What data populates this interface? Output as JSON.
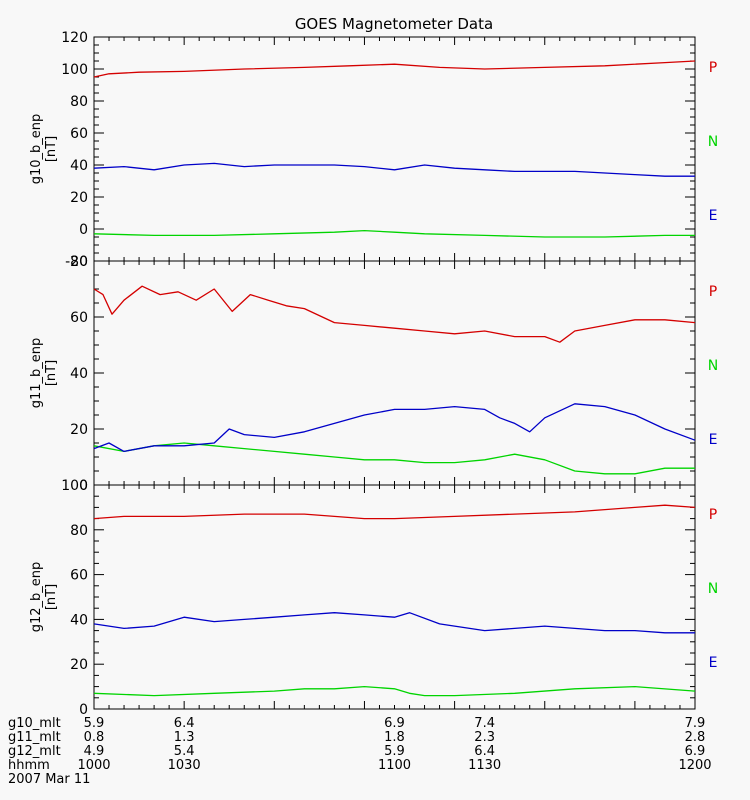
{
  "title": "GOES Magnetometer Data",
  "colors": {
    "P": "#d40000",
    "N": "#00d400",
    "E": "#0000c8"
  },
  "legend": [
    {
      "key": "P",
      "label": "P"
    },
    {
      "key": "N",
      "label": "N"
    },
    {
      "key": "E",
      "label": "E"
    }
  ],
  "chart_data": [
    {
      "type": "line",
      "ylabel": "g10_b_enp\n[nT]",
      "ylim": [
        -20,
        120
      ],
      "yticks": [
        -20,
        0,
        20,
        40,
        60,
        80,
        100,
        120
      ],
      "xlim": [
        1000,
        1200
      ],
      "series": [
        {
          "name": "P",
          "x": [
            1000,
            1005,
            1015,
            1030,
            1050,
            1070,
            1085,
            1100,
            1115,
            1130,
            1150,
            1170,
            1190,
            1200
          ],
          "y": [
            95,
            97,
            98,
            98.5,
            100,
            101,
            102,
            103,
            101,
            100,
            101,
            102,
            104,
            105
          ]
        },
        {
          "name": "N",
          "x": [
            1000,
            1020,
            1040,
            1060,
            1080,
            1090,
            1100,
            1110,
            1130,
            1150,
            1170,
            1190,
            1200
          ],
          "y": [
            -3,
            -4,
            -4,
            -3,
            -2,
            -1,
            -2,
            -3,
            -4,
            -5,
            -5,
            -4,
            -4
          ]
        },
        {
          "name": "E",
          "x": [
            1000,
            1010,
            1020,
            1030,
            1040,
            1050,
            1060,
            1070,
            1080,
            1090,
            1100,
            1110,
            1120,
            1130,
            1140,
            1150,
            1160,
            1170,
            1180,
            1190,
            1200
          ],
          "y": [
            38,
            39,
            37,
            40,
            41,
            39,
            40,
            40,
            40,
            39,
            37,
            40,
            38,
            37,
            36,
            36,
            36,
            35,
            34,
            33,
            33
          ]
        }
      ]
    },
    {
      "type": "line",
      "ylabel": "g11_b_enp\n[nT]",
      "ylim": [
        0,
        80
      ],
      "yticks": [
        0,
        20,
        40,
        60,
        80
      ],
      "xlim": [
        1000,
        1200
      ],
      "series": [
        {
          "name": "P",
          "x": [
            1000,
            1003,
            1006,
            1010,
            1016,
            1022,
            1028,
            1034,
            1040,
            1046,
            1052,
            1058,
            1064,
            1070,
            1080,
            1090,
            1100,
            1110,
            1120,
            1130,
            1140,
            1150,
            1155,
            1160,
            1170,
            1180,
            1190,
            1200
          ],
          "y": [
            70,
            68,
            61,
            66,
            71,
            68,
            69,
            66,
            70,
            62,
            68,
            66,
            64,
            63,
            58,
            57,
            56,
            55,
            54,
            55,
            53,
            53,
            51,
            55,
            57,
            59,
            59,
            58
          ]
        },
        {
          "name": "N",
          "x": [
            1000,
            1010,
            1020,
            1030,
            1040,
            1050,
            1060,
            1070,
            1080,
            1090,
            1100,
            1110,
            1120,
            1130,
            1140,
            1150,
            1160,
            1170,
            1180,
            1190,
            1200
          ],
          "y": [
            14,
            12,
            14,
            15,
            14,
            13,
            12,
            11,
            10,
            9,
            9,
            8,
            8,
            9,
            11,
            9,
            5,
            4,
            4,
            6,
            6
          ]
        },
        {
          "name": "E",
          "x": [
            1000,
            1005,
            1010,
            1020,
            1030,
            1040,
            1045,
            1050,
            1060,
            1070,
            1080,
            1090,
            1100,
            1110,
            1120,
            1130,
            1135,
            1140,
            1145,
            1150,
            1160,
            1170,
            1180,
            1190,
            1200
          ],
          "y": [
            13,
            15,
            12,
            14,
            14,
            15,
            20,
            18,
            17,
            19,
            22,
            25,
            27,
            27,
            28,
            27,
            24,
            22,
            19,
            24,
            29,
            28,
            25,
            20,
            16
          ]
        }
      ]
    },
    {
      "type": "line",
      "ylabel": "g12_b_enp\n[nT]",
      "ylim": [
        0,
        100
      ],
      "yticks": [
        0,
        20,
        40,
        60,
        80,
        100
      ],
      "xlim": [
        1000,
        1200
      ],
      "series": [
        {
          "name": "P",
          "x": [
            1000,
            1010,
            1030,
            1050,
            1070,
            1080,
            1090,
            1100,
            1120,
            1140,
            1160,
            1180,
            1190,
            1200
          ],
          "y": [
            85,
            86,
            86,
            87,
            87,
            86,
            85,
            85,
            86,
            87,
            88,
            90,
            91,
            90
          ]
        },
        {
          "name": "N",
          "x": [
            1000,
            1020,
            1040,
            1060,
            1070,
            1080,
            1090,
            1100,
            1105,
            1110,
            1120,
            1140,
            1160,
            1180,
            1200
          ],
          "y": [
            7,
            6,
            7,
            8,
            9,
            9,
            10,
            9,
            7,
            6,
            6,
            7,
            9,
            10,
            8
          ]
        },
        {
          "name": "E",
          "x": [
            1000,
            1010,
            1020,
            1030,
            1040,
            1050,
            1060,
            1070,
            1080,
            1090,
            1100,
            1105,
            1115,
            1120,
            1130,
            1140,
            1150,
            1160,
            1170,
            1180,
            1190,
            1200
          ],
          "y": [
            38,
            36,
            37,
            41,
            39,
            40,
            41,
            42,
            43,
            42,
            41,
            43,
            38,
            37,
            35,
            36,
            37,
            36,
            35,
            35,
            34,
            34
          ]
        }
      ]
    }
  ],
  "xaxis_rows": [
    {
      "name": "g10_mlt",
      "values": [
        "5.9",
        "6.4",
        "6.9",
        "7.4",
        "7.9"
      ]
    },
    {
      "name": "g11_mlt",
      "values": [
        "0.8",
        "1.3",
        "1.8",
        "2.3",
        "2.8"
      ]
    },
    {
      "name": "g12_mlt",
      "values": [
        "4.9",
        "5.4",
        "5.9",
        "6.4",
        "6.9"
      ]
    },
    {
      "name": "hhmm",
      "values": [
        "1000",
        "1030",
        "1100",
        "1130",
        "1200"
      ]
    }
  ],
  "xaxis_ticks": [
    1000,
    1030,
    1100,
    1130,
    1200
  ],
  "date": "2007 Mar 11"
}
